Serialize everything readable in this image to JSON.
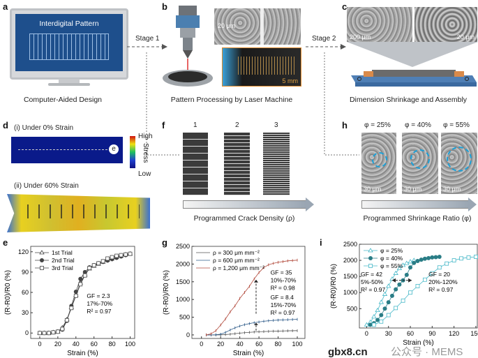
{
  "panels": {
    "a": {
      "label": "a",
      "screen_title": "Interdigital Pattern",
      "caption": "Computer-Aided Design"
    },
    "b": {
      "label": "b",
      "scale_top": "20 μm",
      "scale_bottom": "5 mm",
      "caption": "Pattern Processing by Laser Machine"
    },
    "c": {
      "label": "c",
      "scale_left": "200 μm",
      "scale_right": "20 μm",
      "caption": "Dimension Shrinkage and Assembly"
    },
    "d": {
      "label": "d",
      "state1": "(i) Under 0% Strain",
      "state2": "(ii) Under 60% Strain",
      "bar_high": "High",
      "bar_title": "Stress",
      "bar_low": "Low",
      "electron": "e"
    },
    "f": {
      "label": "f",
      "samples": [
        "1",
        "2",
        "3"
      ],
      "caption": "Programmed Crack Density (ρ)"
    },
    "h": {
      "label": "h",
      "samples": [
        "φ = 25%",
        "φ = 40%",
        "φ = 55%"
      ],
      "scale": "30 μm",
      "caption": "Programmed Shrinkage Ratio (φ)"
    },
    "e": {
      "label": "e"
    },
    "g": {
      "label": "g"
    },
    "i": {
      "label": "i"
    }
  },
  "stages": {
    "stage1": "Stage 1",
    "stage2": "Stage 2"
  },
  "watermark": {
    "text1": "gbx8.cn",
    "text2": "公众号 · MEMS"
  },
  "colors": {
    "screen": "#1e4f8c",
    "teal": "#2a7d86",
    "cyan": "#46b8c8",
    "red": "#b24a3c",
    "blue": "#2f5c8a",
    "gray": "#555555"
  },
  "chart_data": [
    {
      "id": "e",
      "type": "line",
      "xlabel": "Strain (%)",
      "ylabel": "(R-R0)/R0 (%)",
      "xlim": [
        -10,
        105
      ],
      "ylim": [
        -8,
        128
      ],
      "xticks": [
        0,
        20,
        40,
        60,
        80,
        100
      ],
      "yticks": [
        0,
        30,
        60,
        90,
        120
      ],
      "legend": "top-left",
      "annotation": [
        "GF = 2.3",
        "17%-70%",
        "R² = 0.97"
      ],
      "x": [
        0,
        5,
        10,
        15,
        20,
        25,
        30,
        35,
        40,
        45,
        50,
        55,
        60,
        65,
        70,
        75,
        80,
        85,
        90,
        95,
        100
      ],
      "series": [
        {
          "name": "1st Trial",
          "marker": "triangle",
          "values": [
            0,
            0,
            0,
            1,
            2,
            8,
            20,
            38,
            56,
            74,
            86,
            95,
            99,
            102,
            105,
            108,
            110,
            112,
            114,
            116,
            117
          ]
        },
        {
          "name": "2nd Trial",
          "marker": "filled-circle",
          "values": [
            0,
            0,
            0,
            1,
            2,
            5,
            18,
            40,
            61,
            80,
            90,
            97,
            100,
            103,
            105,
            107,
            109,
            111,
            113,
            115,
            117
          ]
        },
        {
          "name": "3rd Trial",
          "marker": "square",
          "values": [
            0,
            0,
            0,
            1,
            2,
            6,
            19,
            37,
            55,
            72,
            85,
            96,
            100,
            103,
            106,
            110,
            112,
            114,
            115,
            116,
            117
          ]
        }
      ]
    },
    {
      "id": "g",
      "type": "line",
      "xlabel": "Strain (%)",
      "ylabel": "(R-R0)/R0 (%)",
      "xlim": [
        -10,
        108
      ],
      "ylim": [
        -100,
        2500
      ],
      "xticks": [
        0,
        20,
        40,
        60,
        80,
        100
      ],
      "yticks": [
        0,
        500,
        1000,
        1500,
        2000,
        2500
      ],
      "legend": "top-left",
      "annotations": [
        [
          "GF = 35",
          "10%-70%",
          "R² = 0.98"
        ],
        [
          "GF = 8.4",
          "15%-70%",
          "R² = 0.97"
        ]
      ],
      "x": [
        5,
        10,
        15,
        20,
        25,
        30,
        35,
        40,
        45,
        50,
        55,
        60,
        65,
        70,
        75,
        80,
        85,
        90,
        95,
        100
      ],
      "series": [
        {
          "name": "ρ = 300 μm mm⁻²",
          "color": "#555555",
          "values": [
            0,
            0,
            0,
            2,
            10,
            20,
            35,
            50,
            62,
            72,
            82,
            90,
            95,
            100,
            105,
            108,
            112,
            115,
            118,
            120
          ]
        },
        {
          "name": "ρ = 600 μm mm⁻²",
          "color": "#2f5c8a",
          "values": [
            0,
            0,
            5,
            20,
            70,
            140,
            200,
            250,
            290,
            320,
            345,
            365,
            385,
            400,
            410,
            418,
            425,
            430,
            435,
            440
          ]
        },
        {
          "name": "ρ = 1,200 μm mm⁻²",
          "color": "#b24a3c",
          "values": [
            0,
            30,
            120,
            280,
            450,
            650,
            820,
            1030,
            1200,
            1370,
            1580,
            1760,
            1900,
            1980,
            2020,
            2050,
            2070,
            2090,
            2100,
            2110
          ]
        }
      ]
    },
    {
      "id": "i",
      "type": "line",
      "xlabel": "Strain (%)",
      "ylabel": "(R-R0)/R0 (%)",
      "xlim": [
        -10,
        152
      ],
      "ylim": [
        -100,
        2500
      ],
      "xticks": [
        0,
        30,
        60,
        90,
        120,
        150
      ],
      "yticks": [
        500,
        1000,
        1500,
        2000,
        2500
      ],
      "legend": "top-left",
      "annotations": [
        [
          "GF = 42",
          "5%-50%",
          "R² = 0.97"
        ],
        [
          "GF = 20",
          "20%-120%",
          "R² = 0.97"
        ]
      ],
      "series": [
        {
          "name": "φ = 25%",
          "marker": "triangle",
          "color": "#46b8c8",
          "x": [
            0,
            5,
            10,
            15,
            20,
            25,
            30,
            35,
            40,
            45,
            50,
            55,
            60,
            65
          ],
          "values": [
            0,
            80,
            250,
            450,
            700,
            950,
            1200,
            1420,
            1600,
            1750,
            1850,
            1910,
            1960,
            2000
          ]
        },
        {
          "name": "φ = 40%",
          "marker": "filled-circle",
          "color": "#2a7d86",
          "x": [
            5,
            10,
            15,
            20,
            25,
            30,
            35,
            40,
            45,
            50,
            55,
            60,
            65,
            70,
            75,
            80,
            85,
            90,
            95,
            100
          ],
          "values": [
            0,
            50,
            150,
            300,
            500,
            700,
            900,
            1100,
            1250,
            1380,
            1550,
            1780,
            1920,
            1980,
            2020,
            2050,
            2070,
            2090,
            2100,
            2110
          ]
        },
        {
          "name": "φ = 55%",
          "marker": "square",
          "color": "#46b8c8",
          "x": [
            10,
            20,
            30,
            40,
            50,
            60,
            70,
            80,
            90,
            100,
            110,
            120,
            130,
            140,
            150
          ],
          "values": [
            0,
            100,
            300,
            520,
            750,
            1000,
            1200,
            1400,
            1600,
            1780,
            1900,
            2000,
            2060,
            2090,
            2110
          ]
        }
      ]
    }
  ]
}
